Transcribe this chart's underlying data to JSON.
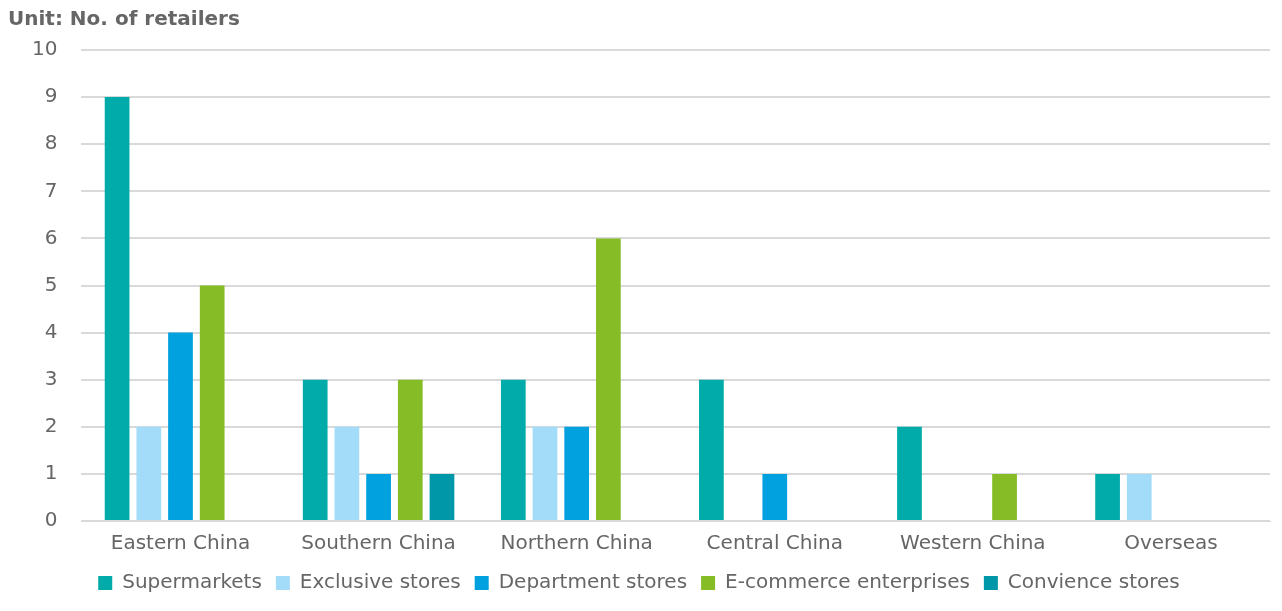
{
  "chart_data": {
    "type": "bar",
    "ylabel": "Unit: No. of retailers",
    "categories": [
      "Eastern China",
      "Southern China",
      "Northern China",
      "Central China",
      "Western China",
      "Overseas"
    ],
    "series": [
      {
        "name": "Supermarkets",
        "color": "#00aba9",
        "values": [
          9,
          3,
          3,
          3,
          2,
          1
        ]
      },
      {
        "name": "Exclusive stores",
        "color": "#a3dcf9",
        "values": [
          2,
          2,
          2,
          0,
          0,
          1
        ]
      },
      {
        "name": "Department stores",
        "color": "#00a1de",
        "values": [
          4,
          1,
          2,
          1,
          0,
          0
        ]
      },
      {
        "name": "E-commerce enterprises",
        "color": "#86bc25",
        "values": [
          5,
          3,
          6,
          0,
          1,
          0
        ]
      },
      {
        "name": "Convience stores",
        "color": "#0097a9",
        "values": [
          0,
          1,
          0,
          0,
          0,
          0
        ]
      }
    ],
    "ylim": [
      0,
      10
    ],
    "yticks": [
      0,
      1,
      2,
      3,
      4,
      5,
      6,
      7,
      8,
      9,
      10
    ],
    "grid": "y",
    "legend": "bottom"
  }
}
